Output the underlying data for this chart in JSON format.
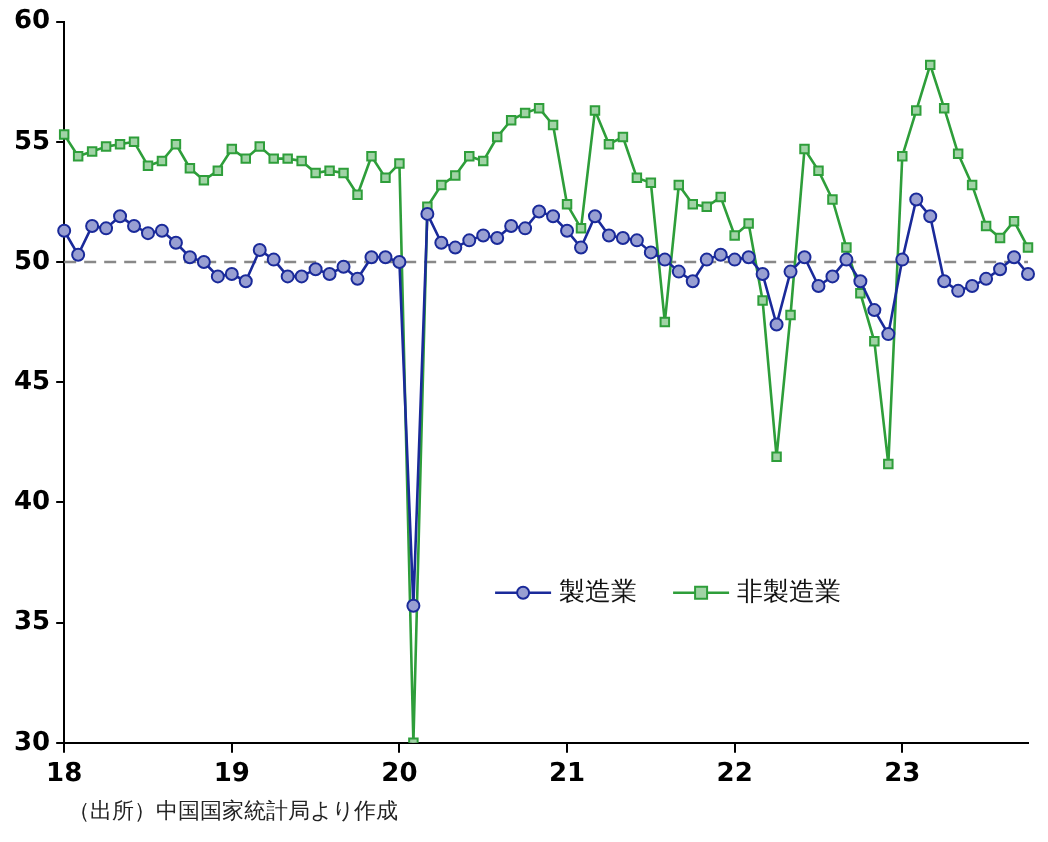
{
  "chart_data": {
    "type": "line",
    "categories": [
      "18",
      null,
      null,
      null,
      null,
      null,
      null,
      null,
      null,
      null,
      null,
      null,
      "19",
      null,
      null,
      null,
      null,
      null,
      null,
      null,
      null,
      null,
      null,
      null,
      "20",
      null,
      null,
      null,
      null,
      null,
      null,
      null,
      null,
      null,
      null,
      null,
      "21",
      null,
      null,
      null,
      null,
      null,
      null,
      null,
      null,
      null,
      null,
      null,
      "22",
      null,
      null,
      null,
      null,
      null,
      null,
      null,
      null,
      null,
      null,
      null,
      "23",
      null,
      null,
      null,
      null,
      null,
      null,
      null,
      null,
      null
    ],
    "series": [
      {
        "name": "製造業",
        "color": "#1a2a9a",
        "marker": "circle",
        "values": [
          51.3,
          50.3,
          51.5,
          51.4,
          51.9,
          51.5,
          51.2,
          51.3,
          50.8,
          50.2,
          50.0,
          49.4,
          49.5,
          49.2,
          50.5,
          50.1,
          49.4,
          49.4,
          49.7,
          49.5,
          49.8,
          49.3,
          50.2,
          50.2,
          50.0,
          35.7,
          52.0,
          50.8,
          50.6,
          50.9,
          51.1,
          51.0,
          51.5,
          51.4,
          52.1,
          51.9,
          51.3,
          50.6,
          51.9,
          51.1,
          51.0,
          50.9,
          50.4,
          50.1,
          49.6,
          49.2,
          50.1,
          50.3,
          50.1,
          50.2,
          49.5,
          47.4,
          49.6,
          50.2,
          49.0,
          49.4,
          50.1,
          49.2,
          48.0,
          47.0,
          50.1,
          52.6,
          51.9,
          49.2,
          48.8,
          49.0,
          49.3,
          49.7,
          50.2,
          49.5
        ]
      },
      {
        "name": "非製造業",
        "color": "#2e9e3a",
        "marker": "square",
        "values": [
          55.3,
          54.4,
          54.6,
          54.8,
          54.9,
          55.0,
          54.0,
          54.2,
          54.9,
          53.9,
          53.4,
          53.8,
          54.7,
          54.3,
          54.8,
          54.3,
          54.3,
          54.2,
          53.7,
          53.8,
          53.7,
          52.8,
          54.4,
          53.5,
          54.1,
          30,
          52.3,
          53.2,
          53.6,
          54.4,
          54.2,
          55.2,
          55.9,
          56.2,
          56.4,
          55.7,
          52.4,
          51.4,
          56.3,
          54.9,
          55.2,
          53.5,
          53.3,
          47.5,
          53.2,
          52.4,
          52.3,
          52.7,
          51.1,
          51.6,
          48.4,
          41.9,
          47.8,
          54.7,
          53.8,
          52.6,
          50.6,
          48.7,
          46.7,
          41.6,
          54.4,
          56.3,
          58.2,
          56.4,
          54.5,
          53.2,
          51.5,
          51.0,
          51.7,
          50.6
        ]
      }
    ],
    "ylim": [
      30,
      60
    ],
    "yticks": [
      30,
      35,
      40,
      45,
      50,
      55,
      60
    ],
    "ref_lines": [
      {
        "axis": "y",
        "value": 50,
        "color": "#888888",
        "line_style": "dashed"
      }
    ],
    "legend": "bottom",
    "annotations": [
      "（出所）中国国家統計局より作成"
    ]
  }
}
